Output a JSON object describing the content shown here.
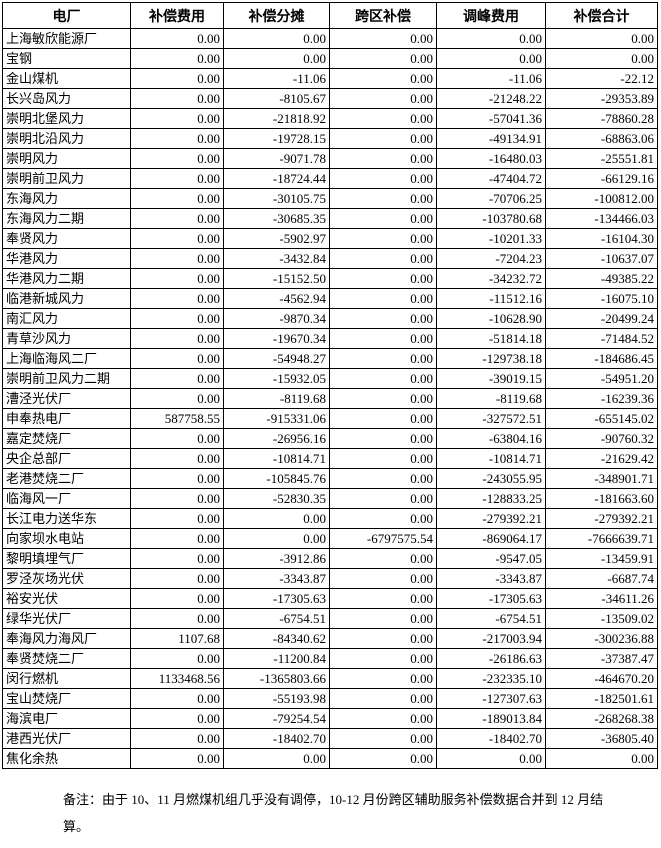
{
  "table": {
    "columns": [
      "电厂",
      "补偿费用",
      "补偿分摊",
      "跨区补偿",
      "调峰费用",
      "补偿合计"
    ],
    "rows": [
      [
        "上海敏欣能源厂",
        "0.00",
        "0.00",
        "0.00",
        "0.00",
        "0.00"
      ],
      [
        "宝钢",
        "0.00",
        "0.00",
        "0.00",
        "0.00",
        "0.00"
      ],
      [
        "金山煤机",
        "0.00",
        "-11.06",
        "0.00",
        "-11.06",
        "-22.12"
      ],
      [
        "长兴岛风力",
        "0.00",
        "-8105.67",
        "0.00",
        "-21248.22",
        "-29353.89"
      ],
      [
        "崇明北堡风力",
        "0.00",
        "-21818.92",
        "0.00",
        "-57041.36",
        "-78860.28"
      ],
      [
        "崇明北沿风力",
        "0.00",
        "-19728.15",
        "0.00",
        "-49134.91",
        "-68863.06"
      ],
      [
        "崇明风力",
        "0.00",
        "-9071.78",
        "0.00",
        "-16480.03",
        "-25551.81"
      ],
      [
        "崇明前卫风力",
        "0.00",
        "-18724.44",
        "0.00",
        "-47404.72",
        "-66129.16"
      ],
      [
        "东海风力",
        "0.00",
        "-30105.75",
        "0.00",
        "-70706.25",
        "-100812.00"
      ],
      [
        "东海风力二期",
        "0.00",
        "-30685.35",
        "0.00",
        "-103780.68",
        "-134466.03"
      ],
      [
        "奉贤风力",
        "0.00",
        "-5902.97",
        "0.00",
        "-10201.33",
        "-16104.30"
      ],
      [
        "华港风力",
        "0.00",
        "-3432.84",
        "0.00",
        "-7204.23",
        "-10637.07"
      ],
      [
        "华港风力二期",
        "0.00",
        "-15152.50",
        "0.00",
        "-34232.72",
        "-49385.22"
      ],
      [
        "临港新城风力",
        "0.00",
        "-4562.94",
        "0.00",
        "-11512.16",
        "-16075.10"
      ],
      [
        "南汇风力",
        "0.00",
        "-9870.34",
        "0.00",
        "-10628.90",
        "-20499.24"
      ],
      [
        "青草沙风力",
        "0.00",
        "-19670.34",
        "0.00",
        "-51814.18",
        "-71484.52"
      ],
      [
        "上海临海风二厂",
        "0.00",
        "-54948.27",
        "0.00",
        "-129738.18",
        "-184686.45"
      ],
      [
        "崇明前卫风力二期",
        "0.00",
        "-15932.05",
        "0.00",
        "-39019.15",
        "-54951.20"
      ],
      [
        "漕泾光伏厂",
        "0.00",
        "-8119.68",
        "0.00",
        "-8119.68",
        "-16239.36"
      ],
      [
        "申奉热电厂",
        "587758.55",
        "-915331.06",
        "0.00",
        "-327572.51",
        "-655145.02"
      ],
      [
        "嘉定焚烧厂",
        "0.00",
        "-26956.16",
        "0.00",
        "-63804.16",
        "-90760.32"
      ],
      [
        "央企总部厂",
        "0.00",
        "-10814.71",
        "0.00",
        "-10814.71",
        "-21629.42"
      ],
      [
        "老港焚烧二厂",
        "0.00",
        "-105845.76",
        "0.00",
        "-243055.95",
        "-348901.71"
      ],
      [
        "临海风一厂",
        "0.00",
        "-52830.35",
        "0.00",
        "-128833.25",
        "-181663.60"
      ],
      [
        "长江电力送华东",
        "0.00",
        "0.00",
        "0.00",
        "-279392.21",
        "-279392.21"
      ],
      [
        "向家坝水电站",
        "0.00",
        "0.00",
        "-6797575.54",
        "-869064.17",
        "-7666639.71"
      ],
      [
        "黎明填埋气厂",
        "0.00",
        "-3912.86",
        "0.00",
        "-9547.05",
        "-13459.91"
      ],
      [
        "罗泾灰场光伏",
        "0.00",
        "-3343.87",
        "0.00",
        "-3343.87",
        "-6687.74"
      ],
      [
        "裕安光伏",
        "0.00",
        "-17305.63",
        "0.00",
        "-17305.63",
        "-34611.26"
      ],
      [
        "绿华光伏厂",
        "0.00",
        "-6754.51",
        "0.00",
        "-6754.51",
        "-13509.02"
      ],
      [
        "奉海风力海风厂",
        "1107.68",
        "-84340.62",
        "0.00",
        "-217003.94",
        "-300236.88"
      ],
      [
        "奉贤焚烧二厂",
        "0.00",
        "-11200.84",
        "0.00",
        "-26186.63",
        "-37387.47"
      ],
      [
        "闵行燃机",
        "1133468.56",
        "-1365803.66",
        "0.00",
        "-232335.10",
        "-464670.20"
      ],
      [
        "宝山焚烧厂",
        "0.00",
        "-55193.98",
        "0.00",
        "-127307.63",
        "-182501.61"
      ],
      [
        "海滨电厂",
        "0.00",
        "-79254.54",
        "0.00",
        "-189013.84",
        "-268268.38"
      ],
      [
        "港西光伏厂",
        "0.00",
        "-18402.70",
        "0.00",
        "-18402.70",
        "-36805.40"
      ],
      [
        "焦化余热",
        "0.00",
        "0.00",
        "0.00",
        "0.00",
        "0.00"
      ]
    ]
  },
  "note": {
    "text": "备注：由于 10、11 月燃煤机组几乎没有调停，10-12 月份跨区辅助服务补偿数据合并到 12 月结算。"
  }
}
